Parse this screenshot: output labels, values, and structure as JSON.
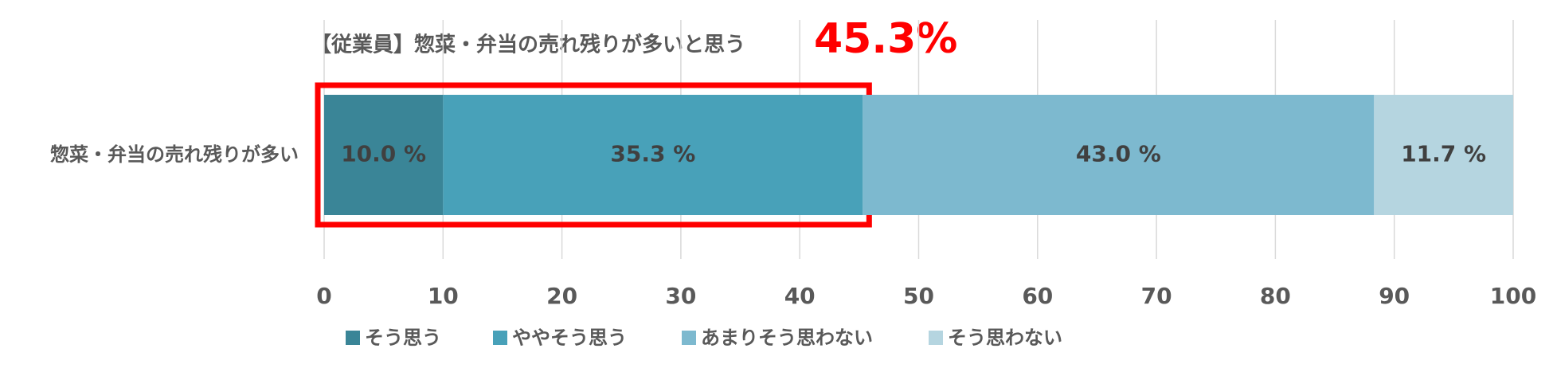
{
  "chart_data": {
    "type": "stacked-bar-horizontal",
    "title": "【従業員】惣菜・弁当の売れ残りが多いと思う",
    "annotation": "45.3%",
    "categories": [
      "惣菜・弁当の売れ残りが多い"
    ],
    "series": [
      {
        "name": "そう思う",
        "color": "#3a8597",
        "values": [
          10.0
        ],
        "value_labels": [
          "10.0 %"
        ]
      },
      {
        "name": "ややそう思う",
        "color": "#48a1b9",
        "values": [
          35.3
        ],
        "value_labels": [
          "35.3 %"
        ]
      },
      {
        "name": "あまりそう思わない",
        "color": "#7db9cf",
        "values": [
          43.0
        ],
        "value_labels": [
          "43.0 %"
        ]
      },
      {
        "name": "そう思わない",
        "color": "#b5d5e0",
        "values": [
          11.7
        ],
        "value_labels": [
          "11.7 %"
        ]
      }
    ],
    "xlim": [
      0,
      100
    ],
    "xticks": [
      0,
      10,
      20,
      30,
      40,
      50,
      60,
      70,
      80,
      90,
      100
    ],
    "grid": true,
    "legend": "bottom"
  }
}
